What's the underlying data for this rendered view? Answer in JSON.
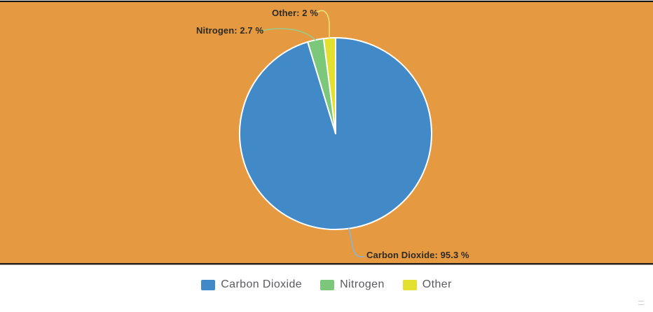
{
  "chart_data": {
    "type": "pie",
    "title": "",
    "unit": "%",
    "total": 100,
    "legend_position": "bottom",
    "plot_background": "#e59a41",
    "start_angle_deg": -90,
    "direction": "clockwise",
    "slices": [
      {
        "label": "Carbon Dioxide",
        "value": 95.3,
        "color": "#4289c7",
        "line_color": "#8bb3d8",
        "callout": "Carbon Dioxide: 95.3 %"
      },
      {
        "label": "Nitrogen",
        "value": 2.7,
        "color": "#7cc87a",
        "line_color": "#95cc8d",
        "callout": "Nitrogen: 2.7 %"
      },
      {
        "label": "Other",
        "value": 2,
        "color": "#e3e030",
        "line_color": "#e9e375",
        "callout": "Other: 2 %"
      }
    ]
  },
  "legend": {
    "items": [
      {
        "label": "Carbon Dioxide",
        "color": "#4289c7"
      },
      {
        "label": "Nitrogen",
        "color": "#7cc87a"
      },
      {
        "label": "Other",
        "color": "#e3e030"
      }
    ]
  },
  "styles": {
    "callout_text_color": "#2e2a22",
    "legend_text_color": "#5a5b5e",
    "top_border_color": "#141414",
    "bottom_border_color": "#25221d"
  }
}
